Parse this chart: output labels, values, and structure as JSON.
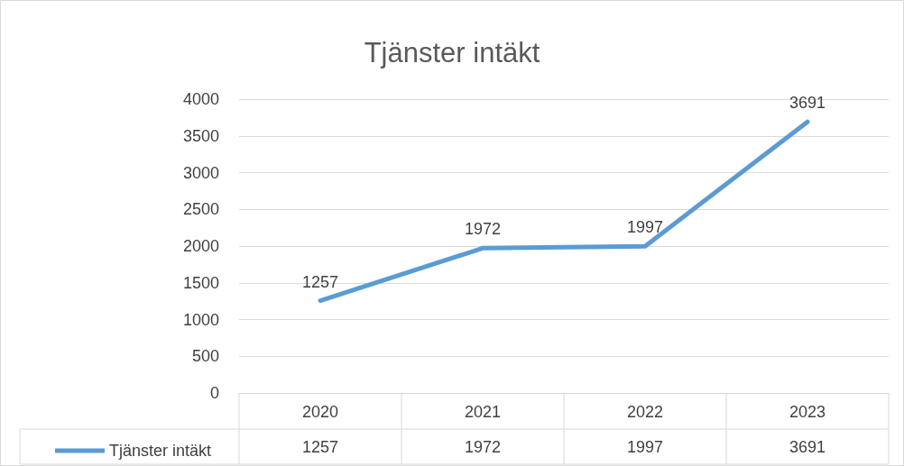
{
  "chart_data": {
    "type": "line",
    "title": "Tjänster intäkt",
    "categories": [
      "2020",
      "2021",
      "2022",
      "2023"
    ],
    "series": [
      {
        "name": "Tjänster intäkt",
        "color": "#5b9bd5",
        "values": [
          1257,
          1972,
          1997,
          3691
        ],
        "value_labels": [
          "1257",
          "1972",
          "1997",
          "3691"
        ]
      }
    ],
    "ylim": [
      0,
      4000
    ],
    "yticks": [
      0,
      500,
      1000,
      1500,
      2000,
      2500,
      3000,
      3500,
      4000
    ],
    "annotations": [
      "1257",
      "1972",
      "1997",
      "3691"
    ],
    "grid": "y",
    "legend": "bottom",
    "marker": "none",
    "line_style": "solid"
  }
}
